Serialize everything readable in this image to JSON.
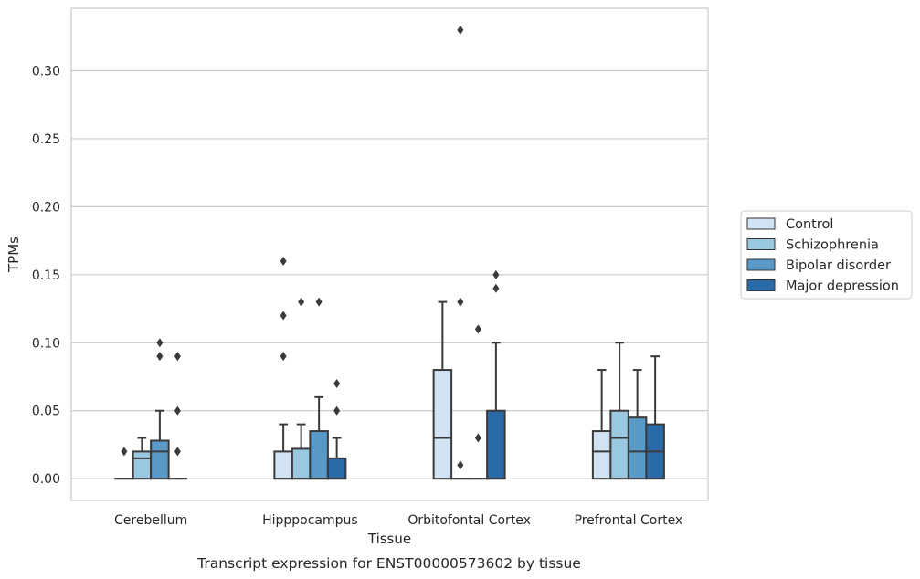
{
  "caption": "Transcript expression for ENST00000573602 by tissue",
  "chart_data": {
    "type": "box",
    "xlabel": "Tissue",
    "ylabel": "TPMs",
    "ylim": [
      -0.016,
      0.346
    ],
    "yticks": [
      0.0,
      0.05,
      0.1,
      0.15,
      0.2,
      0.25,
      0.3
    ],
    "ytick_labels": [
      "0.00",
      "0.05",
      "0.10",
      "0.15",
      "0.20",
      "0.25",
      "0.30"
    ],
    "grid": "horizontal",
    "legend_position": "right",
    "categories": [
      "Cerebellum",
      "Hipppocampus",
      "Orbitofontal Cortex",
      "Prefrontal Cortex"
    ],
    "series": [
      {
        "name": "Control",
        "color": "#d2e3f3",
        "boxes": [
          {
            "q1": 0.0,
            "median": 0.0,
            "q3": 0.0,
            "whisker_low": 0.0,
            "whisker_high": 0.0,
            "outliers": [
              0.02
            ]
          },
          {
            "q1": 0.0,
            "median": 0.0,
            "q3": 0.02,
            "whisker_low": 0.0,
            "whisker_high": 0.04,
            "outliers": [
              0.09,
              0.12,
              0.16
            ]
          },
          {
            "q1": 0.0,
            "median": 0.03,
            "q3": 0.08,
            "whisker_low": 0.0,
            "whisker_high": 0.13,
            "outliers": []
          },
          {
            "q1": 0.0,
            "median": 0.02,
            "q3": 0.035,
            "whisker_low": 0.0,
            "whisker_high": 0.08,
            "outliers": []
          }
        ]
      },
      {
        "name": "Schizophrenia",
        "color": "#9ac8e0",
        "boxes": [
          {
            "q1": 0.0,
            "median": 0.015,
            "q3": 0.02,
            "whisker_low": 0.0,
            "whisker_high": 0.03,
            "outliers": []
          },
          {
            "q1": 0.0,
            "median": 0.0,
            "q3": 0.022,
            "whisker_low": 0.0,
            "whisker_high": 0.04,
            "outliers": [
              0.13
            ]
          },
          {
            "q1": 0.0,
            "median": 0.0,
            "q3": 0.0,
            "whisker_low": 0.0,
            "whisker_high": 0.0,
            "outliers": [
              0.01,
              0.13,
              0.33
            ]
          },
          {
            "q1": 0.0,
            "median": 0.03,
            "q3": 0.05,
            "whisker_low": 0.0,
            "whisker_high": 0.1,
            "outliers": []
          }
        ]
      },
      {
        "name": "Bipolar disorder",
        "color": "#5a9ac8",
        "boxes": [
          {
            "q1": 0.0,
            "median": 0.02,
            "q3": 0.028,
            "whisker_low": 0.0,
            "whisker_high": 0.05,
            "outliers": [
              0.09,
              0.1
            ]
          },
          {
            "q1": 0.0,
            "median": 0.0,
            "q3": 0.035,
            "whisker_low": 0.0,
            "whisker_high": 0.06,
            "outliers": [
              0.13
            ]
          },
          {
            "q1": 0.0,
            "median": 0.0,
            "q3": 0.0,
            "whisker_low": 0.0,
            "whisker_high": 0.0,
            "outliers": [
              0.03,
              0.11
            ]
          },
          {
            "q1": 0.0,
            "median": 0.02,
            "q3": 0.045,
            "whisker_low": 0.0,
            "whisker_high": 0.08,
            "outliers": []
          }
        ]
      },
      {
        "name": "Major depression",
        "color": "#2a6aa8",
        "boxes": [
          {
            "q1": 0.0,
            "median": 0.0,
            "q3": 0.0,
            "whisker_low": 0.0,
            "whisker_high": 0.0,
            "outliers": [
              0.02,
              0.05,
              0.09
            ]
          },
          {
            "q1": 0.0,
            "median": 0.0,
            "q3": 0.015,
            "whisker_low": 0.0,
            "whisker_high": 0.03,
            "outliers": [
              0.05,
              0.07
            ]
          },
          {
            "q1": 0.0,
            "median": 0.0,
            "q3": 0.05,
            "whisker_low": 0.0,
            "whisker_high": 0.1,
            "outliers": [
              0.14,
              0.15
            ]
          },
          {
            "q1": 0.0,
            "median": 0.02,
            "q3": 0.04,
            "whisker_low": 0.0,
            "whisker_high": 0.09,
            "outliers": []
          }
        ]
      }
    ]
  }
}
